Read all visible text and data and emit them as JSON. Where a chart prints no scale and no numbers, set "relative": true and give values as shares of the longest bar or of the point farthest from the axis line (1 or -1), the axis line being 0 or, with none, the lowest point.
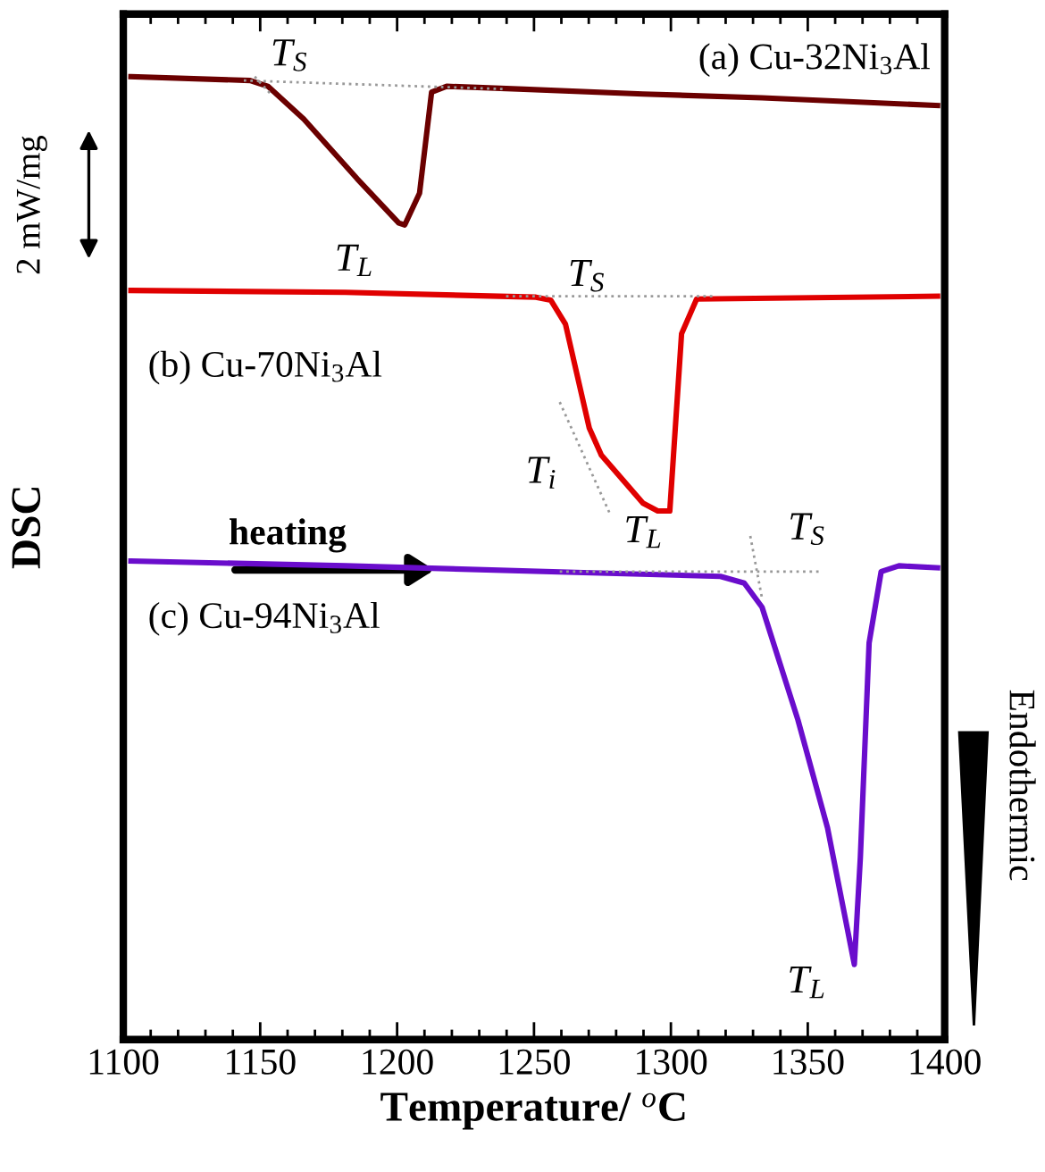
{
  "chart_data": {
    "type": "line",
    "relative": true,
    "xlabel": "Temperature/ $^{o}$C",
    "ylabel": "DSC",
    "xlim": [
      1100,
      1400
    ],
    "xticks": [
      1100,
      1150,
      1200,
      1250,
      1300,
      1350,
      1400
    ],
    "grid": false,
    "legend": false,
    "marker": "none",
    "series": [
      {
        "name": "(a) Cu-32Ni$_{3}$Al",
        "color": "#6b0000",
        "line_style": "solid",
        "x": [
          1102.8,
          1146.3,
          1152.8,
          1165.9,
          1185.4,
          1200.6,
          1202.8,
          1208.2,
          1212.6,
          1218.1,
          1246.3,
          1289.8,
          1333.3,
          1397.4
        ],
        "values": [
          1.0,
          0.996,
          0.99,
          0.956,
          0.894,
          0.848,
          0.846,
          0.879,
          0.984,
          0.99,
          0.987,
          0.982,
          0.978,
          0.97
        ]
      },
      {
        "name": "(b) Cu-70Ni$_{3}$Al",
        "color": "#e00000",
        "line_style": "solid",
        "x": [
          1102.8,
          1181.1,
          1250.7,
          1256.1,
          1261.5,
          1270.2,
          1274.6,
          1289.8,
          1295.2,
          1299.6,
          1303.9,
          1309.4,
          1397.4
        ],
        "values": [
          0.778,
          0.776,
          0.771,
          0.768,
          0.743,
          0.635,
          0.607,
          0.557,
          0.549,
          0.549,
          0.733,
          0.769,
          0.772
        ]
      },
      {
        "name": "(c) Cu-94Ni$_{3}$Al",
        "color": "#6a0dcc",
        "line_style": "solid",
        "x": [
          1102.8,
          1181.1,
          1268.1,
          1318.1,
          1326.8,
          1333.3,
          1346.4,
          1357.2,
          1367.0,
          1369.2,
          1372.4,
          1376.8,
          1383.3,
          1397.4
        ],
        "values": [
          0.497,
          0.492,
          0.485,
          0.481,
          0.474,
          0.449,
          0.332,
          0.22,
          0.078,
          0.189,
          0.412,
          0.486,
          0.492,
          0.49
        ]
      },
      {
        "color": "#999999",
        "line_style": "dotted",
        "x": [
          1148.0,
          1153.5
        ],
        "values": [
          1.0,
          0.983
        ]
      },
      {
        "color": "#999999",
        "line_style": "dotted",
        "x": [
          1144.0,
          1240.0
        ],
        "values": [
          0.996,
          0.987
        ]
      },
      {
        "color": "#999999",
        "line_style": "dotted",
        "x": [
          1239.8,
          1316.0
        ],
        "values": [
          0.772,
          0.772
        ]
      },
      {
        "color": "#999999",
        "line_style": "dotted",
        "x": [
          1259.4,
          1277.9
        ],
        "values": [
          0.662,
          0.545
        ]
      },
      {
        "color": "#999999",
        "line_style": "dotted",
        "x": [
          1259.4,
          1355.1
        ],
        "values": [
          0.486,
          0.486
        ]
      },
      {
        "color": "#999999",
        "line_style": "dotted",
        "x": [
          1329.0,
          1333.3
        ],
        "values": [
          0.523,
          0.458
        ]
      }
    ],
    "annotations": [
      "T$_{S}$",
      "T$_{L}$",
      "T$_{S}$",
      "T$_{i}$",
      "T$_{L}$",
      "T$_{S}$",
      "T$_{L}$",
      "heating",
      "2 mW/mg",
      "Endothermic"
    ]
  }
}
